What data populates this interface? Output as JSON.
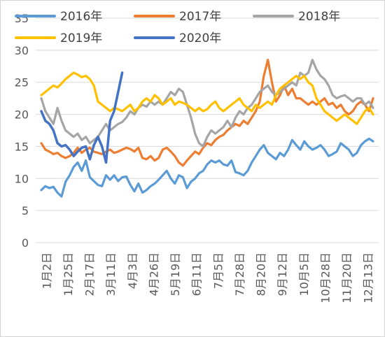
{
  "chart_data": {
    "type": "line",
    "title": "",
    "xlabel": "",
    "ylabel": "",
    "ylim": [
      0,
      35
    ],
    "yticks": [
      "0",
      "5",
      "10",
      "15",
      "20",
      "25",
      "30",
      "35"
    ],
    "x_tick_labels": [
      "1月2日",
      "1月25日",
      "2月17日",
      "3月11日",
      "4月3日",
      "4月26日",
      "5月19日",
      "6月11日",
      "7月5日",
      "7月28日",
      "8月20日",
      "9月12日",
      "10月5日",
      "10月28日",
      "11月20日",
      "12月13日"
    ],
    "grid": "horizontal",
    "legend_position": "top",
    "series": [
      {
        "name": "2016年",
        "color": "#5B9BD5",
        "values": [
          8.2,
          8.8,
          8.5,
          8.7,
          7.8,
          7.2,
          9.5,
          10.5,
          11.8,
          12.5,
          11.2,
          12.8,
          10.2,
          9.6,
          9.0,
          8.8,
          10.5,
          9.8,
          10.5,
          9.6,
          10.2,
          10.3,
          9.0,
          8.0,
          9.2,
          7.8,
          8.2,
          8.8,
          9.2,
          9.8,
          10.5,
          11.2,
          10.0,
          9.2,
          10.5,
          10.2,
          8.5,
          9.5,
          10.0,
          10.8,
          11.2,
          12.2,
          12.8,
          12.5,
          12.8,
          12.2,
          12.0,
          12.8,
          11.0,
          10.8,
          10.5,
          11.2,
          12.5,
          13.5,
          14.5,
          15.2,
          14.0,
          13.5,
          13.0,
          14.0,
          13.5,
          14.5,
          16.0,
          15.2,
          14.5,
          15.8,
          15.0,
          14.5,
          14.8,
          15.2,
          14.5,
          13.5,
          13.8,
          14.2,
          15.5,
          15.0,
          14.5,
          13.5,
          14.0,
          15.2,
          15.8,
          16.2,
          15.8
        ]
      },
      {
        "name": "2017年",
        "color": "#ED7D31",
        "values": [
          15.5,
          14.5,
          14.2,
          13.8,
          14.0,
          13.5,
          13.2,
          13.5,
          14.0,
          14.8,
          14.0,
          14.5,
          14.8,
          14.2,
          14.0,
          13.8,
          14.2,
          14.5,
          14.0,
          14.2,
          14.5,
          14.8,
          14.6,
          14.2,
          14.8,
          13.2,
          13.0,
          13.5,
          12.8,
          13.2,
          14.5,
          14.8,
          14.2,
          13.5,
          12.5,
          12.0,
          12.8,
          13.5,
          14.2,
          13.8,
          14.8,
          15.5,
          15.2,
          16.0,
          16.5,
          16.8,
          17.5,
          18.0,
          18.5,
          18.2,
          19.0,
          18.5,
          19.5,
          20.5,
          22.0,
          26.0,
          28.5,
          25.0,
          22.0,
          23.0,
          24.5,
          23.0,
          24.0,
          22.5,
          22.5,
          22.0,
          21.5,
          22.0,
          21.5,
          22.0,
          22.5,
          21.5,
          21.8,
          21.0,
          21.5,
          20.5,
          20.0,
          20.5,
          21.5,
          22.0,
          21.5,
          20.5,
          22.5
        ]
      },
      {
        "name": "2018年",
        "color": "#A5A5A5",
        "values": [
          22.5,
          20.5,
          19.5,
          18.5,
          21.0,
          19.0,
          17.5,
          17.0,
          16.5,
          17.0,
          16.0,
          16.5,
          15.5,
          16.0,
          16.5,
          17.5,
          18.5,
          17.5,
          18.0,
          18.5,
          18.8,
          19.5,
          20.5,
          20.0,
          21.0,
          21.5,
          21.2,
          22.0,
          21.5,
          22.0,
          21.5,
          22.5,
          23.5,
          23.0,
          24.0,
          23.5,
          21.5,
          19.5,
          17.0,
          15.5,
          15.0,
          16.5,
          17.5,
          17.0,
          17.5,
          18.0,
          19.0,
          18.0,
          19.5,
          20.5,
          20.0,
          21.0,
          21.5,
          22.5,
          23.5,
          24.0,
          24.5,
          23.5,
          23.0,
          23.5,
          24.0,
          24.5,
          25.0,
          24.5,
          26.5,
          26.0,
          26.5,
          28.5,
          27.0,
          26.0,
          25.5,
          24.5,
          23.0,
          22.5,
          22.8,
          23.0,
          22.5,
          22.0,
          22.5,
          22.5,
          21.5,
          22.0,
          21.0
        ]
      },
      {
        "name": "2019年",
        "color": "#FFC000",
        "values": [
          23.0,
          23.5,
          24.0,
          24.5,
          24.2,
          24.8,
          25.5,
          26.0,
          26.5,
          26.2,
          25.8,
          26.0,
          25.5,
          24.5,
          22.0,
          21.5,
          21.0,
          20.5,
          21.0,
          20.8,
          20.5,
          21.0,
          21.5,
          20.5,
          21.0,
          22.0,
          22.5,
          22.0,
          23.0,
          22.5,
          21.5,
          22.0,
          22.5,
          21.5,
          22.0,
          21.8,
          21.5,
          21.0,
          20.5,
          21.0,
          20.5,
          20.8,
          21.5,
          22.0,
          21.0,
          20.5,
          21.0,
          21.5,
          22.0,
          22.5,
          21.5,
          21.0,
          20.5,
          21.5,
          21.0,
          21.5,
          22.0,
          21.5,
          23.0,
          24.0,
          24.5,
          25.0,
          25.5,
          26.0,
          25.5,
          26.0,
          25.0,
          24.5,
          22.5,
          21.5,
          20.5,
          20.0,
          19.5,
          19.0,
          19.5,
          20.0,
          19.5,
          19.0,
          18.5,
          19.5,
          20.5,
          21.0,
          20.0
        ]
      },
      {
        "name": "2020年",
        "color": "#4472C4",
        "values": [
          20.5,
          19.0,
          18.5,
          17.5,
          15.5,
          15.0,
          15.2,
          14.5,
          13.5,
          14.2,
          14.8,
          15.0,
          13.0,
          15.2,
          16.5,
          15.0,
          12.5,
          19.0,
          20.5,
          23.5,
          26.5
        ]
      }
    ]
  }
}
